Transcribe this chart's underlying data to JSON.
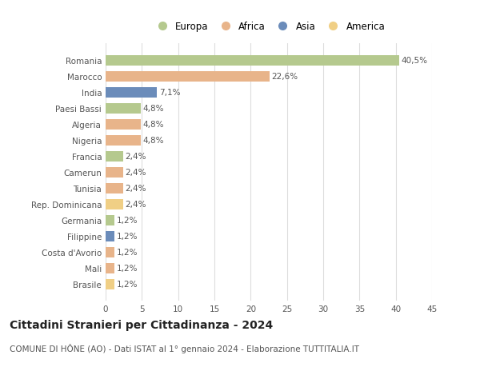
{
  "categories": [
    "Romania",
    "Marocco",
    "India",
    "Paesi Bassi",
    "Algeria",
    "Nigeria",
    "Francia",
    "Camerun",
    "Tunisia",
    "Rep. Dominicana",
    "Germania",
    "Filippine",
    "Costa d'Avorio",
    "Mali",
    "Brasile"
  ],
  "values": [
    40.5,
    22.6,
    7.1,
    4.8,
    4.8,
    4.8,
    2.4,
    2.4,
    2.4,
    2.4,
    1.2,
    1.2,
    1.2,
    1.2,
    1.2
  ],
  "labels": [
    "40,5%",
    "22,6%",
    "7,1%",
    "4,8%",
    "4,8%",
    "4,8%",
    "2,4%",
    "2,4%",
    "2,4%",
    "2,4%",
    "1,2%",
    "1,2%",
    "1,2%",
    "1,2%",
    "1,2%"
  ],
  "colors": [
    "#b5c98e",
    "#e8b48a",
    "#6b8cba",
    "#b5c98e",
    "#e8b48a",
    "#e8b48a",
    "#b5c98e",
    "#e8b48a",
    "#e8b48a",
    "#f0cf85",
    "#b5c98e",
    "#6b8cba",
    "#e8b48a",
    "#e8b48a",
    "#f0cf85"
  ],
  "legend": [
    {
      "label": "Europa",
      "color": "#b5c98e"
    },
    {
      "label": "Africa",
      "color": "#e8b48a"
    },
    {
      "label": "Asia",
      "color": "#6b8cba"
    },
    {
      "label": "America",
      "color": "#f0cf85"
    }
  ],
  "xlim": [
    0,
    45
  ],
  "xticks": [
    0,
    5,
    10,
    15,
    20,
    25,
    30,
    35,
    40,
    45
  ],
  "title": "Cittadini Stranieri per Cittadinanza - 2024",
  "subtitle": "COMUNE DI HÔNE (AO) - Dati ISTAT al 1° gennaio 2024 - Elaborazione TUTTITALIA.IT",
  "bar_height": 0.65,
  "bg_color": "#ffffff",
  "grid_color": "#dddddd",
  "label_fontsize": 7.5,
  "tick_fontsize": 7.5,
  "title_fontsize": 10,
  "subtitle_fontsize": 7.5,
  "legend_fontsize": 8.5
}
